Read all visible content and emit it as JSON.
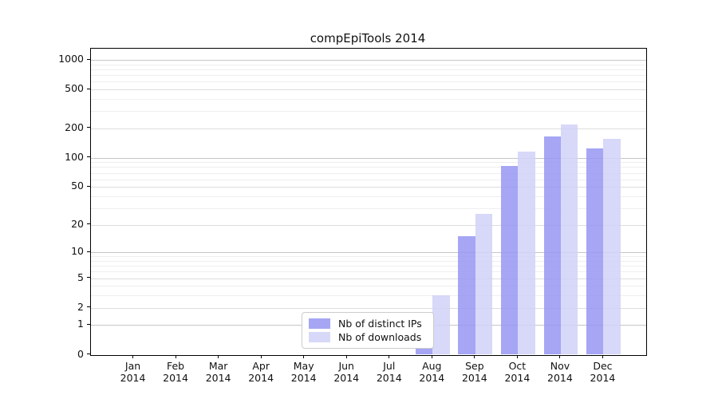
{
  "title": "compEpiTools 2014",
  "chart_data": {
    "type": "bar",
    "title": "compEpiTools 2014",
    "yscale": "log1p",
    "grid": true,
    "ylim": [
      0,
      1300
    ],
    "yticks": [
      0,
      1,
      2,
      5,
      10,
      20,
      50,
      100,
      200,
      500,
      1000
    ],
    "categories": [
      "Jan",
      "Feb",
      "Mar",
      "Apr",
      "May",
      "Jun",
      "Jul",
      "Aug",
      "Sep",
      "Oct",
      "Nov",
      "Dec"
    ],
    "x_year": "2014",
    "series": [
      {
        "name": "Nb of distinct IPs",
        "color": "#a6a6f4",
        "fill": "rgba(150,150,243,0.85)",
        "values": [
          0,
          0,
          0,
          0,
          0,
          0,
          0,
          1,
          15,
          82,
          165,
          125
        ]
      },
      {
        "name": "Nb of downloads",
        "color": "#d8d8f8",
        "fill": "rgba(209,209,248,0.85)",
        "values": [
          0,
          0,
          0,
          0,
          0,
          0,
          0,
          3,
          26,
          115,
          220,
          156
        ]
      }
    ],
    "legend_position": "lower center inside",
    "gridline_colors": {
      "decade": "#c6c6c6",
      "labeled": "#dddddd",
      "minor": "#efefef"
    }
  }
}
